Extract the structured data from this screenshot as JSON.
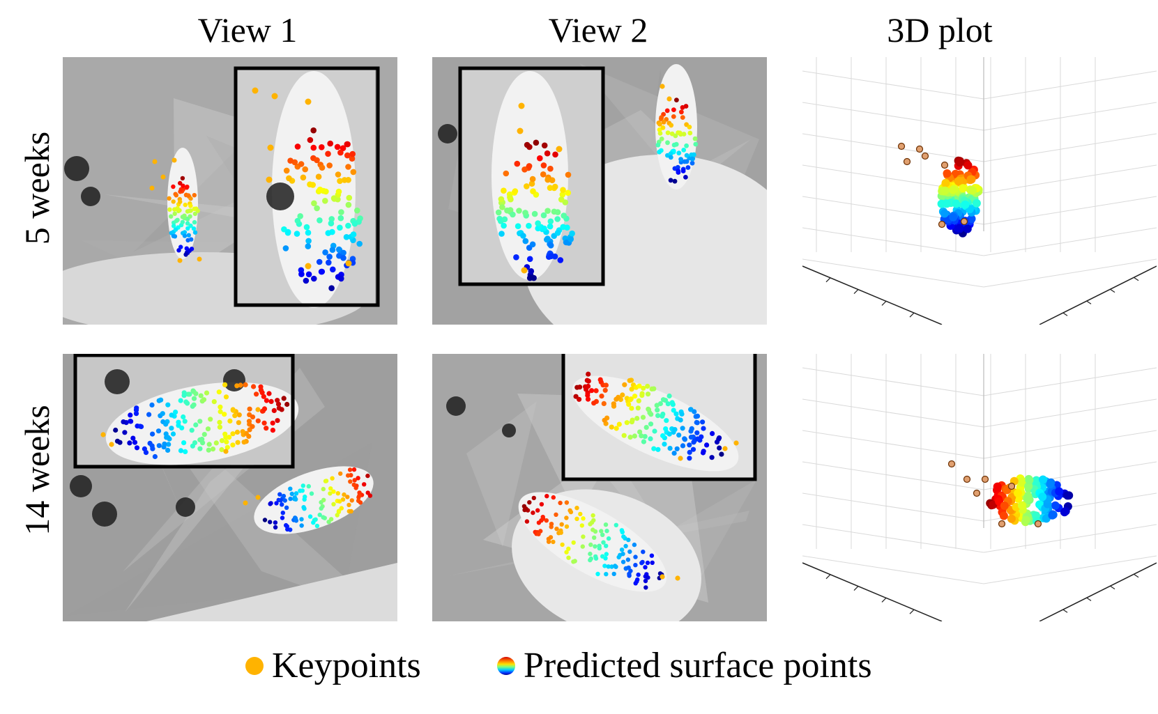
{
  "figure": {
    "column_titles": [
      "View 1",
      "View 2",
      "3D plot"
    ],
    "row_labels": [
      "5 weeks",
      "14 weeks"
    ],
    "legend": {
      "keypoints_label": "Keypoints",
      "surface_label": "Predicted surface points"
    },
    "colors": {
      "keypoint": "#ffb300",
      "inset_frame": "#000000",
      "jet_low": "#00008b",
      "jet_mid": "#7fff7f",
      "jet_high": "#8b0000"
    }
  }
}
